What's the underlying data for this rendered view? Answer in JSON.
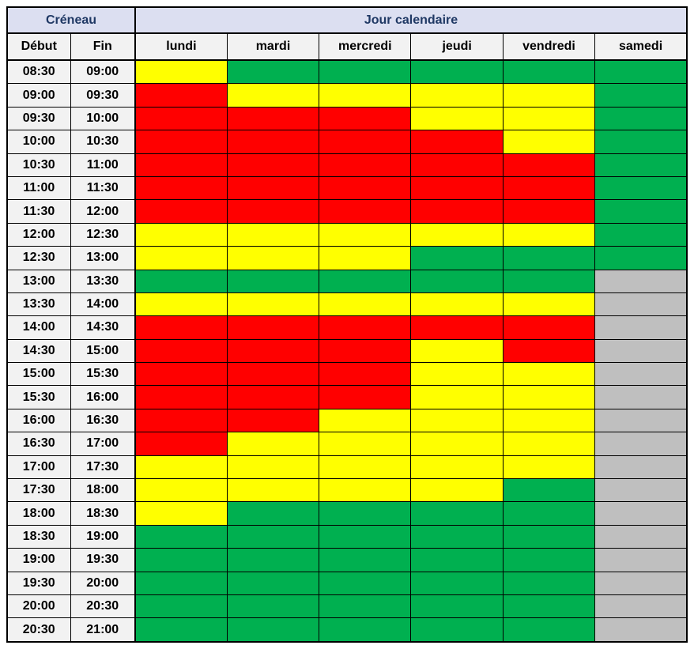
{
  "table": {
    "header_group": {
      "creneau": "Créneau",
      "jour_calendaire": "Jour calendaire"
    },
    "time_columns": {
      "debut": "Début",
      "fin": "Fin"
    },
    "day_headers": [
      "lundi",
      "mardi",
      "mercredi",
      "jeudi",
      "vendredi",
      "samedi"
    ],
    "rows": [
      {
        "debut": "08:30",
        "fin": "09:00",
        "cells": [
          "yellow",
          "green",
          "green",
          "green",
          "green",
          "green"
        ]
      },
      {
        "debut": "09:00",
        "fin": "09:30",
        "cells": [
          "red",
          "yellow",
          "yellow",
          "yellow",
          "yellow",
          "green"
        ]
      },
      {
        "debut": "09:30",
        "fin": "10:00",
        "cells": [
          "red",
          "red",
          "red",
          "yellow",
          "yellow",
          "green"
        ]
      },
      {
        "debut": "10:00",
        "fin": "10:30",
        "cells": [
          "red",
          "red",
          "red",
          "red",
          "yellow",
          "green"
        ]
      },
      {
        "debut": "10:30",
        "fin": "11:00",
        "cells": [
          "red",
          "red",
          "red",
          "red",
          "red",
          "green"
        ]
      },
      {
        "debut": "11:00",
        "fin": "11:30",
        "cells": [
          "red",
          "red",
          "red",
          "red",
          "red",
          "green"
        ]
      },
      {
        "debut": "11:30",
        "fin": "12:00",
        "cells": [
          "red",
          "red",
          "red",
          "red",
          "red",
          "green"
        ]
      },
      {
        "debut": "12:00",
        "fin": "12:30",
        "cells": [
          "yellow",
          "yellow",
          "yellow",
          "yellow",
          "yellow",
          "green"
        ]
      },
      {
        "debut": "12:30",
        "fin": "13:00",
        "cells": [
          "yellow",
          "yellow",
          "yellow",
          "green",
          "green",
          "green"
        ]
      },
      {
        "debut": "13:00",
        "fin": "13:30",
        "cells": [
          "green",
          "green",
          "green",
          "green",
          "green",
          "gray"
        ]
      },
      {
        "debut": "13:30",
        "fin": "14:00",
        "cells": [
          "yellow",
          "yellow",
          "yellow",
          "yellow",
          "yellow",
          "gray"
        ]
      },
      {
        "debut": "14:00",
        "fin": "14:30",
        "cells": [
          "red",
          "red",
          "red",
          "red",
          "red",
          "gray"
        ]
      },
      {
        "debut": "14:30",
        "fin": "15:00",
        "cells": [
          "red",
          "red",
          "red",
          "yellow",
          "red",
          "gray"
        ]
      },
      {
        "debut": "15:00",
        "fin": "15:30",
        "cells": [
          "red",
          "red",
          "red",
          "yellow",
          "yellow",
          "gray"
        ]
      },
      {
        "debut": "15:30",
        "fin": "16:00",
        "cells": [
          "red",
          "red",
          "red",
          "yellow",
          "yellow",
          "gray"
        ]
      },
      {
        "debut": "16:00",
        "fin": "16:30",
        "cells": [
          "red",
          "red",
          "yellow",
          "yellow",
          "yellow",
          "gray"
        ]
      },
      {
        "debut": "16:30",
        "fin": "17:00",
        "cells": [
          "red",
          "yellow",
          "yellow",
          "yellow",
          "yellow",
          "gray"
        ]
      },
      {
        "debut": "17:00",
        "fin": "17:30",
        "cells": [
          "yellow",
          "yellow",
          "yellow",
          "yellow",
          "yellow",
          "gray"
        ]
      },
      {
        "debut": "17:30",
        "fin": "18:00",
        "cells": [
          "yellow",
          "yellow",
          "yellow",
          "yellow",
          "green",
          "gray"
        ]
      },
      {
        "debut": "18:00",
        "fin": "18:30",
        "cells": [
          "yellow",
          "green",
          "green",
          "green",
          "green",
          "gray"
        ]
      },
      {
        "debut": "18:30",
        "fin": "19:00",
        "cells": [
          "green",
          "green",
          "green",
          "green",
          "green",
          "gray"
        ]
      },
      {
        "debut": "19:00",
        "fin": "19:30",
        "cells": [
          "green",
          "green",
          "green",
          "green",
          "green",
          "gray"
        ]
      },
      {
        "debut": "19:30",
        "fin": "20:00",
        "cells": [
          "green",
          "green",
          "green",
          "green",
          "green",
          "gray"
        ]
      },
      {
        "debut": "20:00",
        "fin": "20:30",
        "cells": [
          "green",
          "green",
          "green",
          "green",
          "green",
          "gray"
        ]
      },
      {
        "debut": "20:30",
        "fin": "21:00",
        "cells": [
          "green",
          "green",
          "green",
          "green",
          "green",
          "gray"
        ]
      }
    ]
  },
  "colors": {
    "red": "#FF0000",
    "yellow": "#FFFF00",
    "green": "#00B050",
    "gray": "#BFBFBF",
    "header_fill": "#DCDFF1",
    "header_text": "#1F3864",
    "label_fill": "#F2F2F2",
    "border": "#000000"
  }
}
